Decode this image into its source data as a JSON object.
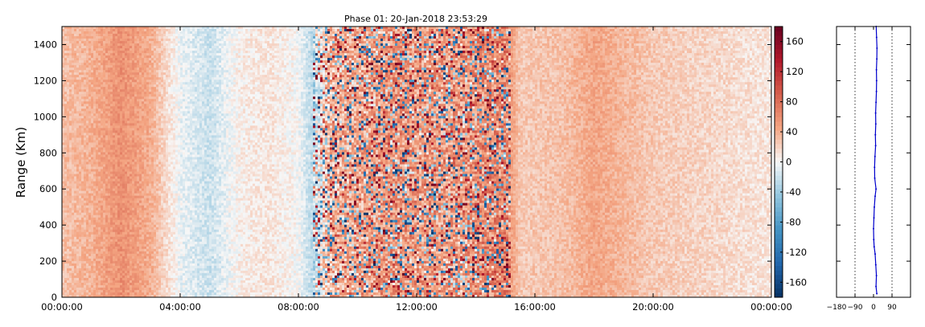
{
  "chart_data": [
    {
      "type": "heatmap",
      "title": "Phase 01: 20-Jan-2018 23:53:29",
      "ylabel": "Range (Km)",
      "xlabel": "",
      "x_ticks": [
        "00:00:00",
        "04:00:00",
        "08:00:00",
        "12:00:00",
        "16:00:00",
        "20:00:00",
        "00:00:00"
      ],
      "x_range_hours": [
        0,
        24
      ],
      "y_ticks": [
        0,
        200,
        400,
        600,
        800,
        1000,
        1200,
        1400
      ],
      "ylim": [
        0,
        1500
      ],
      "value_range": [
        -180,
        180
      ],
      "colormap": "RdBu_r",
      "colorbar_ticks": [
        160,
        120,
        80,
        40,
        0,
        -40,
        -80,
        -120,
        -160
      ],
      "grid": false,
      "noisy_hours": [
        8.5,
        15.2
      ],
      "mean_phase_by_hour": [
        {
          "h": 0,
          "v": 30
        },
        {
          "h": 1,
          "v": 38
        },
        {
          "h": 2,
          "v": 58
        },
        {
          "h": 3,
          "v": 40
        },
        {
          "h": 4,
          "v": -5
        },
        {
          "h": 5,
          "v": -20
        },
        {
          "h": 6,
          "v": 5
        },
        {
          "h": 7,
          "v": 10
        },
        {
          "h": 8,
          "v": 0
        },
        {
          "h": 8.5,
          "v": -30
        },
        {
          "h": 9,
          "v": 35
        },
        {
          "h": 11,
          "v": 55
        },
        {
          "h": 13,
          "v": 50
        },
        {
          "h": 15,
          "v": 65
        },
        {
          "h": 15.5,
          "v": 25
        },
        {
          "h": 17,
          "v": 30
        },
        {
          "h": 18,
          "v": 45
        },
        {
          "h": 20,
          "v": 25
        },
        {
          "h": 22,
          "v": 18
        },
        {
          "h": 24,
          "v": 10
        }
      ]
    },
    {
      "type": "line",
      "xlabel": "",
      "ylabel": "",
      "x_ticks": [
        -180,
        -90,
        0,
        90
      ],
      "xlim": [
        -180,
        180
      ],
      "ylim": [
        0,
        1500
      ],
      "y_ticks": [
        0,
        200,
        400,
        600,
        800,
        1000,
        1200,
        1400
      ],
      "reference_lines_x": [
        -90,
        90
      ],
      "series": [
        {
          "color": "#0000cc",
          "points": [
            {
              "y": 20,
              "x": 16
            },
            {
              "y": 60,
              "x": 12
            },
            {
              "y": 120,
              "x": 14
            },
            {
              "y": 180,
              "x": 11
            },
            {
              "y": 240,
              "x": 8
            },
            {
              "y": 280,
              "x": 3
            },
            {
              "y": 320,
              "x": 1
            },
            {
              "y": 380,
              "x": 0
            },
            {
              "y": 440,
              "x": 2
            },
            {
              "y": 500,
              "x": 4
            },
            {
              "y": 560,
              "x": 8
            },
            {
              "y": 600,
              "x": 12
            },
            {
              "y": 660,
              "x": 6
            },
            {
              "y": 720,
              "x": 5
            },
            {
              "y": 780,
              "x": 7
            },
            {
              "y": 840,
              "x": 10
            },
            {
              "y": 900,
              "x": 9
            },
            {
              "y": 960,
              "x": 11
            },
            {
              "y": 1020,
              "x": 10
            },
            {
              "y": 1080,
              "x": 12
            },
            {
              "y": 1140,
              "x": 14
            },
            {
              "y": 1200,
              "x": 15
            },
            {
              "y": 1260,
              "x": 14
            },
            {
              "y": 1320,
              "x": 16
            },
            {
              "y": 1380,
              "x": 17
            },
            {
              "y": 1440,
              "x": 15
            },
            {
              "y": 1500,
              "x": 13
            }
          ]
        }
      ]
    }
  ]
}
